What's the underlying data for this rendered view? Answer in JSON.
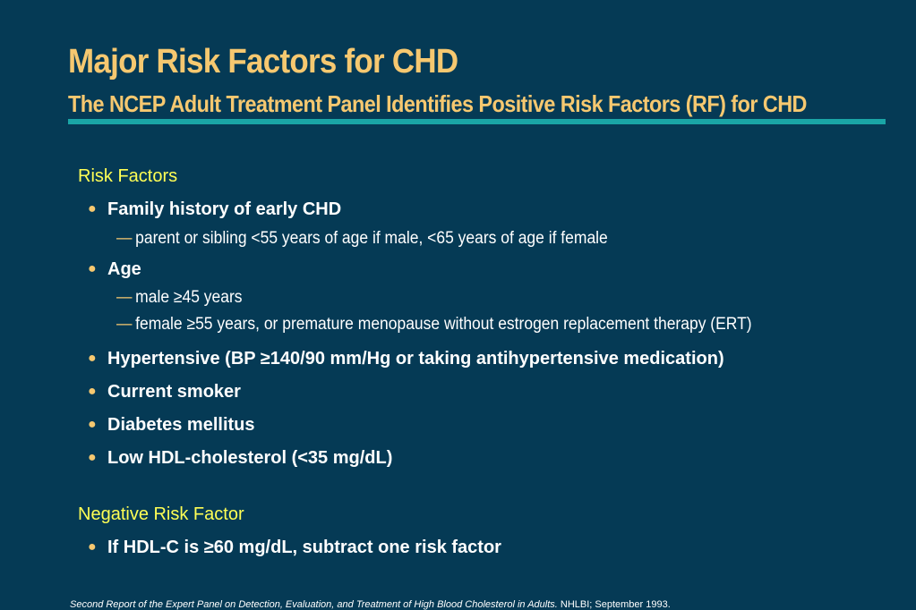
{
  "slide": {
    "title": "Major Risk Factors for CHD",
    "subtitle": "The NCEP Adult Treatment Panel Identifies Positive Risk Factors (RF) for CHD"
  },
  "risk_factors": {
    "heading": "Risk Factors",
    "items": [
      {
        "label": "Family history of early CHD",
        "subs": [
          "parent or sibling <55 years of age if male, <65 years of age if female"
        ]
      },
      {
        "label": "Age",
        "subs": [
          "male ≥45 years",
          "female ≥55 years, or premature menopause without estrogen replacement therapy (ERT)"
        ]
      },
      {
        "label": "Hypertensive (BP ≥140/90 mm/Hg or taking antihypertensive medication)",
        "subs": []
      },
      {
        "label": "Current smoker",
        "subs": []
      },
      {
        "label": "Diabetes mellitus",
        "subs": []
      },
      {
        "label": "Low  HDL-cholesterol (<35 mg/dL)",
        "subs": []
      }
    ]
  },
  "negative_factor": {
    "heading": "Negative Risk Factor",
    "items": [
      {
        "label": "If HDL-C is ≥60 mg/dL, subtract one risk factor"
      }
    ]
  },
  "footer": {
    "citation_italic": "Second Report of the Expert Panel on Detection, Evaluation, and Treatment of High Blood Cholesterol in Adults.",
    "citation_rest": " NHLBI; September 1993."
  },
  "colors": {
    "background": "#053a55",
    "title": "#f6c870",
    "heading": "#ffff55",
    "rule": "#1aa5a6"
  }
}
